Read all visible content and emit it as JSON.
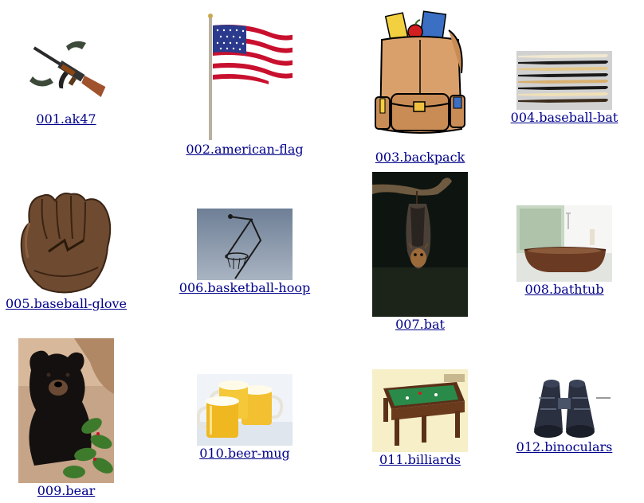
{
  "gallery": {
    "link_color": "#00008b",
    "items": [
      {
        "caption": "001.ak47",
        "icon": "ak47-rifle"
      },
      {
        "caption": "002.american-flag",
        "icon": "american-flag"
      },
      {
        "caption": "003.backpack",
        "icon": "backpack"
      },
      {
        "caption": "004.baseball-bat",
        "icon": "baseball-bats"
      },
      {
        "caption": "005.baseball-glove",
        "icon": "baseball-glove"
      },
      {
        "caption": "006.basketball-hoop",
        "icon": "basketball-hoop"
      },
      {
        "caption": "007.bat",
        "icon": "hanging-bat"
      },
      {
        "caption": "008.bathtub",
        "icon": "bathtub"
      },
      {
        "caption": "009.bear",
        "icon": "black-bear"
      },
      {
        "caption": "010.beer-mug",
        "icon": "beer-mugs"
      },
      {
        "caption": "011.billiards",
        "icon": "billiards-table"
      },
      {
        "caption": "012.binoculars",
        "icon": "binoculars"
      }
    ]
  }
}
